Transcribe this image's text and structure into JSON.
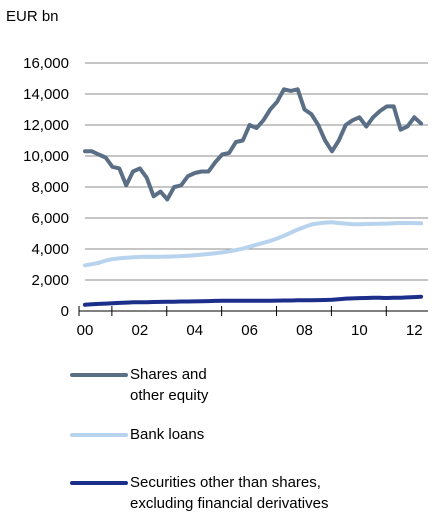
{
  "chart_data": {
    "type": "line",
    "unit_label": "EUR bn",
    "title": "",
    "xlabel": "",
    "ylabel": "",
    "x_ticks": [
      "00",
      "02",
      "04",
      "06",
      "08",
      "10",
      "12"
    ],
    "x_tick_values": [
      2000,
      2002,
      2004,
      2006,
      2008,
      2010,
      2012
    ],
    "xlim": [
      2000,
      2012.5
    ],
    "y_ticks": [
      "0",
      "2,000",
      "4,000",
      "6,000",
      "8,000",
      "10,000",
      "12,000",
      "14,000",
      "16,000"
    ],
    "y_tick_values": [
      0,
      2000,
      4000,
      6000,
      8000,
      10000,
      12000,
      14000,
      16000
    ],
    "ylim": [
      0,
      16000
    ],
    "grid": "horizontal",
    "legend_position": "bottom",
    "x": [
      2000.0,
      2000.25,
      2000.5,
      2000.75,
      2001.0,
      2001.25,
      2001.5,
      2001.75,
      2002.0,
      2002.25,
      2002.5,
      2002.75,
      2003.0,
      2003.25,
      2003.5,
      2003.75,
      2004.0,
      2004.25,
      2004.5,
      2004.75,
      2005.0,
      2005.25,
      2005.5,
      2005.75,
      2006.0,
      2006.25,
      2006.5,
      2006.75,
      2007.0,
      2007.25,
      2007.5,
      2007.75,
      2008.0,
      2008.25,
      2008.5,
      2008.75,
      2009.0,
      2009.25,
      2009.5,
      2009.75,
      2010.0,
      2010.25,
      2010.5,
      2010.75,
      2011.0,
      2011.25,
      2011.5,
      2011.75,
      2012.0,
      2012.25
    ],
    "series": [
      {
        "name": "Shares and\nother equity",
        "legend_lines": [
          "Shares and",
          "other equity"
        ],
        "color": "#5a6f85",
        "values": [
          10300,
          10300,
          10100,
          9900,
          9300,
          9200,
          8100,
          9000,
          9200,
          8600,
          7400,
          7700,
          7200,
          8000,
          8100,
          8700,
          8900,
          9000,
          9000,
          9600,
          10100,
          10200,
          10900,
          11000,
          12000,
          11800,
          12300,
          13000,
          13500,
          14300,
          14200,
          14300,
          13000,
          12700,
          12000,
          11000,
          10300,
          11000,
          12000,
          12300,
          12500,
          11900,
          12500,
          12900,
          13200,
          13200,
          11700,
          11900,
          12500,
          12100
        ]
      },
      {
        "name": "Bank loans",
        "legend_lines": [
          "Bank loans"
        ],
        "color": "#b7d3ee",
        "values": [
          2950,
          3020,
          3100,
          3250,
          3350,
          3400,
          3430,
          3470,
          3490,
          3500,
          3490,
          3500,
          3510,
          3520,
          3540,
          3570,
          3600,
          3640,
          3680,
          3720,
          3780,
          3850,
          3930,
          4020,
          4150,
          4280,
          4400,
          4520,
          4680,
          4850,
          5050,
          5250,
          5420,
          5580,
          5650,
          5700,
          5720,
          5680,
          5640,
          5600,
          5600,
          5610,
          5620,
          5630,
          5640,
          5660,
          5680,
          5680,
          5670,
          5660
        ]
      },
      {
        "name": "Securities other than shares,\nexcluding financial derivatives",
        "legend_lines": [
          "Securities other than shares,",
          "excluding financial derivatives"
        ],
        "color": "#1b2f8a",
        "values": [
          400,
          430,
          460,
          480,
          500,
          520,
          540,
          560,
          560,
          570,
          580,
          590,
          600,
          600,
          610,
          615,
          620,
          630,
          640,
          650,
          660,
          660,
          660,
          660,
          660,
          660,
          660,
          660,
          670,
          680,
          680,
          690,
          690,
          690,
          700,
          710,
          720,
          760,
          800,
          810,
          830,
          840,
          850,
          850,
          840,
          850,
          860,
          880,
          900,
          920
        ]
      }
    ]
  }
}
